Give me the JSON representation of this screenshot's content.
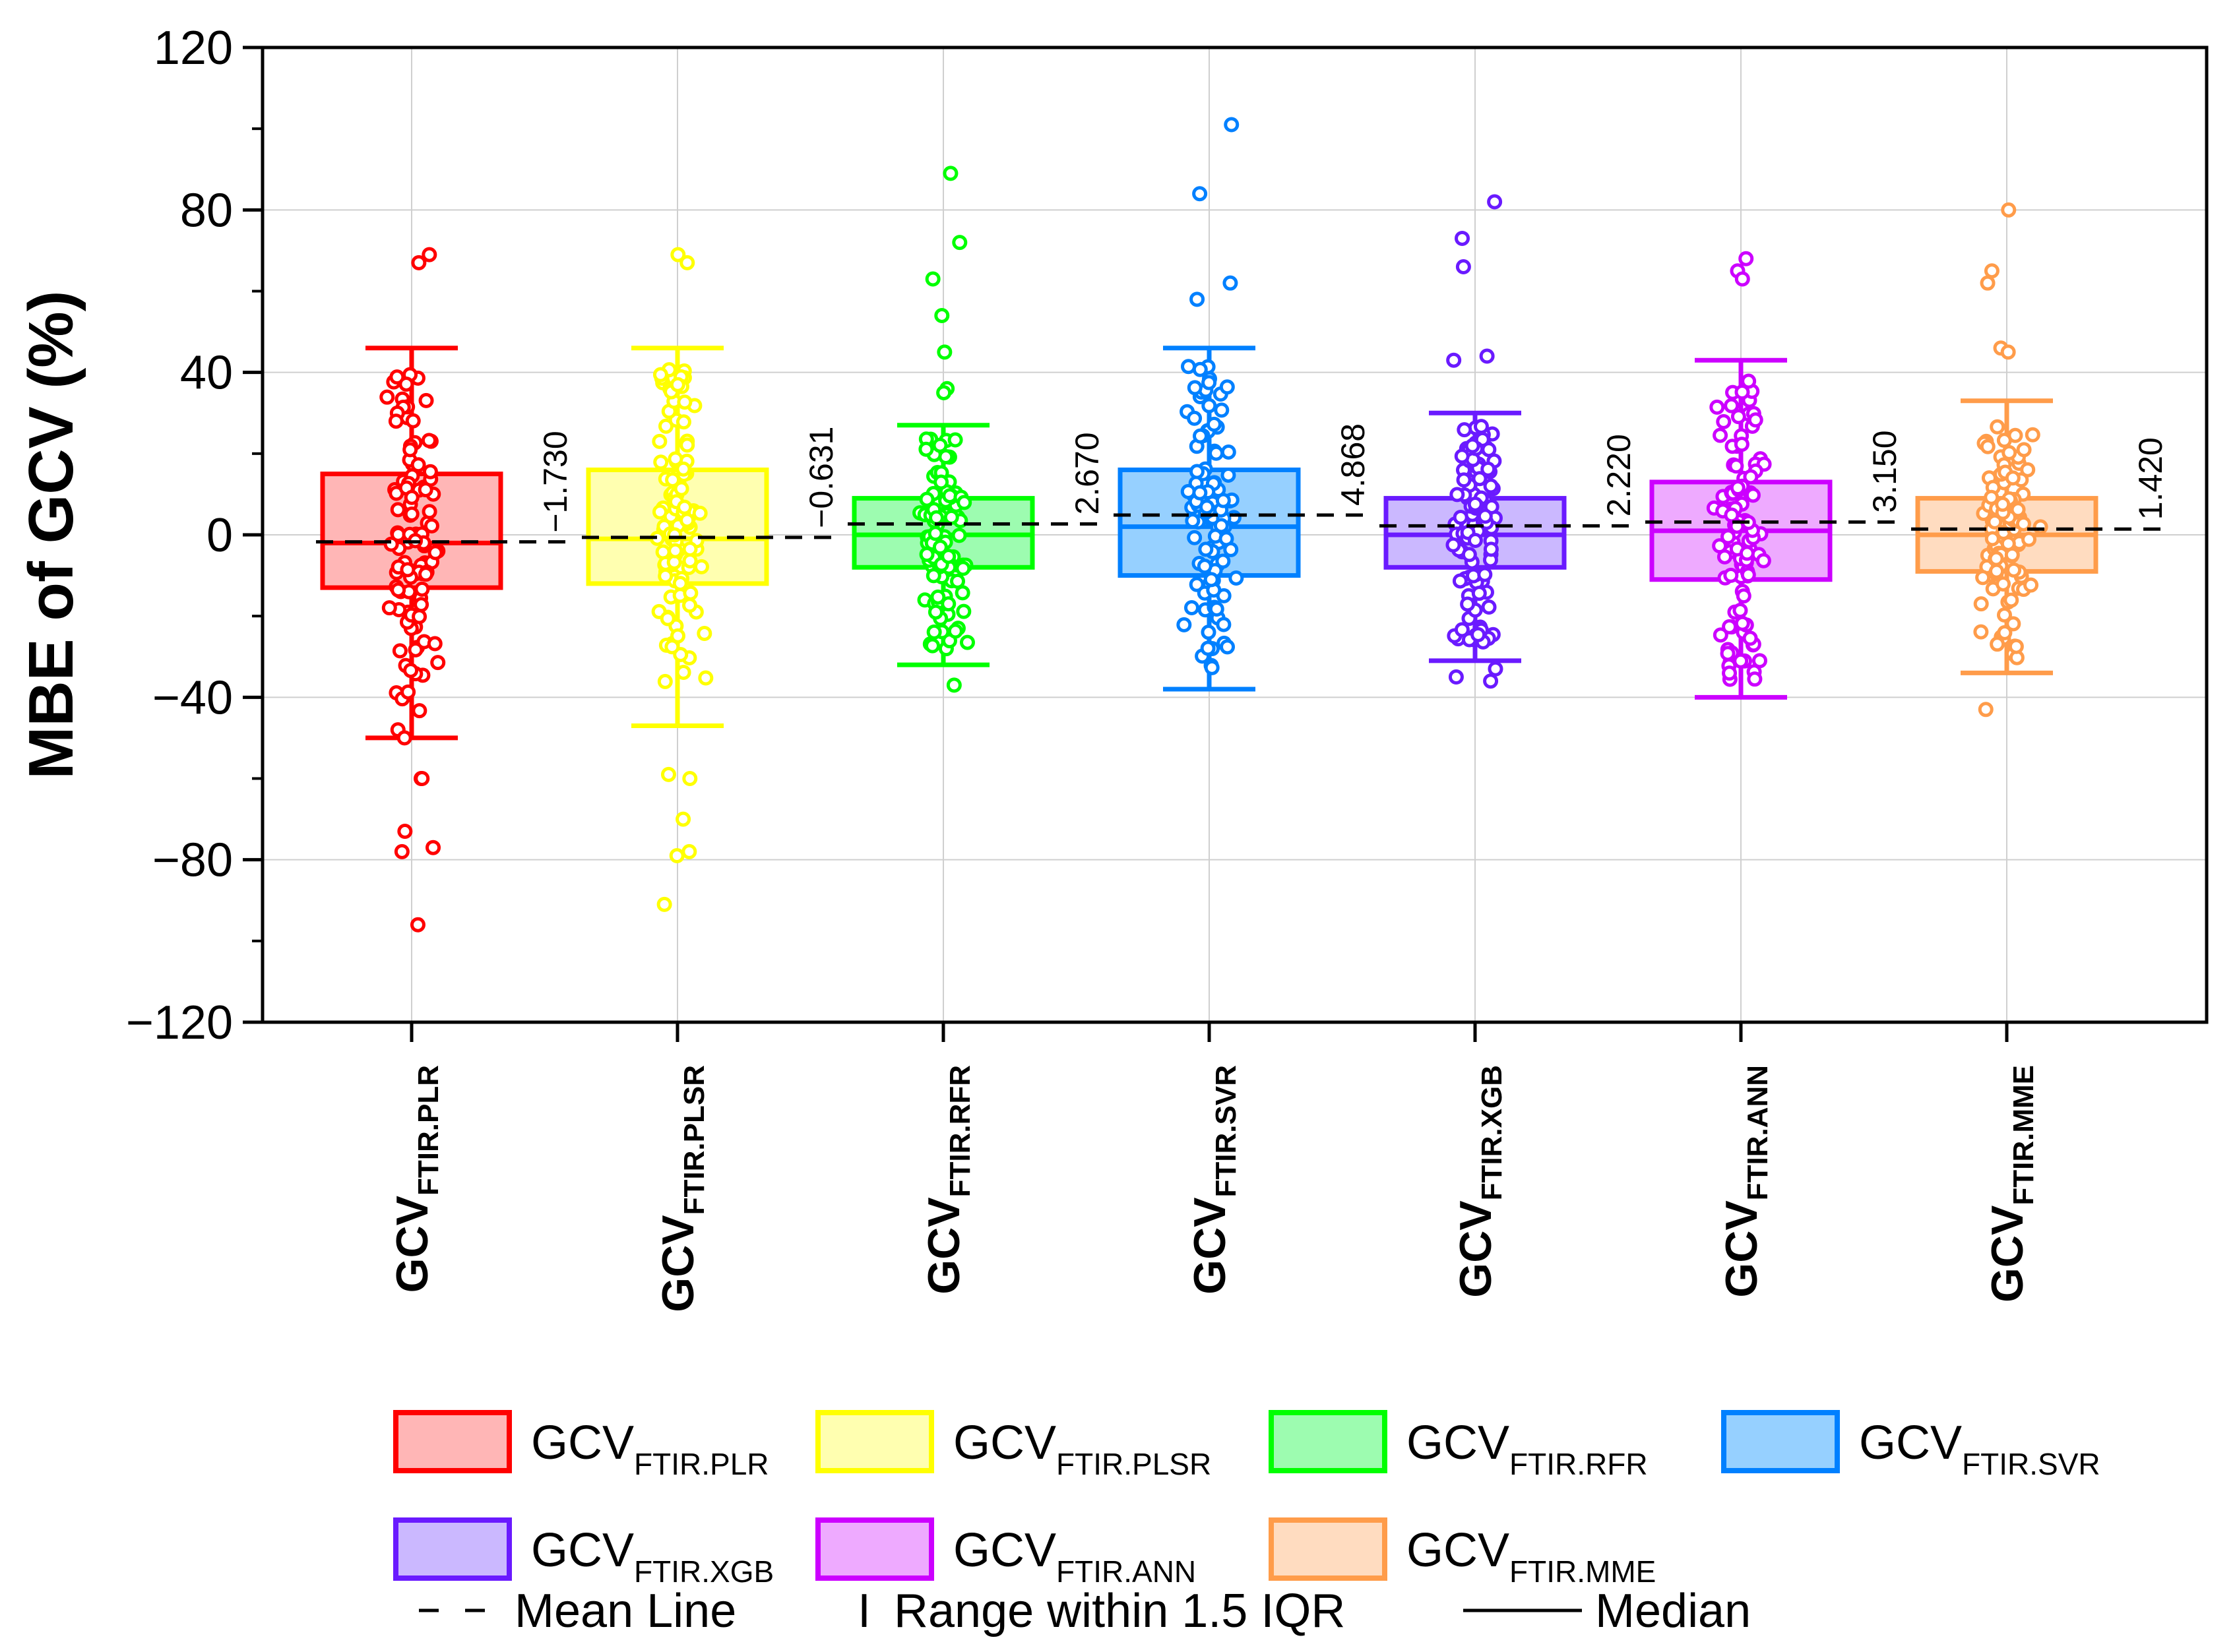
{
  "chart_data": {
    "type": "box",
    "ylabel": "MBE of GCV (%)",
    "ylim": [
      -120,
      120
    ],
    "yticks": [
      -120,
      -80,
      -40,
      0,
      40,
      80,
      120
    ],
    "ytick_labels": [
      "−120",
      "−80",
      "−40",
      "0",
      "40",
      "80",
      "120"
    ],
    "grid": true,
    "legend_position": "bottom",
    "series": [
      {
        "name": "GCV",
        "sub": "FTIR.PLR",
        "color": "#ff0000",
        "fill": "#ffb6b6",
        "q1": -13,
        "median": -2,
        "q3": 15,
        "whisker_low": -50,
        "whisker_high": 46,
        "mean": -1.73,
        "mean_label": "−1.730",
        "outliers": [
          69,
          67,
          -73,
          -78,
          -77,
          -96,
          -60,
          -60,
          -48,
          -50
        ]
      },
      {
        "name": "GCV",
        "sub": "FTIR.PLSR",
        "color": "#ffff00",
        "fill": "#ffffb0",
        "q1": -12,
        "median": -1,
        "q3": 16,
        "whisker_low": -47,
        "whisker_high": 46,
        "mean": -0.631,
        "mean_label": "−0.631",
        "outliers": [
          69,
          67,
          -59,
          -60,
          -70,
          -78,
          -79,
          -91
        ]
      },
      {
        "name": "GCV",
        "sub": "FTIR.RFR",
        "color": "#00ff00",
        "fill": "#9dfcb0",
        "q1": -8,
        "median": 0,
        "q3": 9,
        "whisker_low": -32,
        "whisker_high": 27,
        "mean": 2.67,
        "mean_label": "2.670",
        "outliers": [
          89,
          72,
          63,
          54,
          45,
          36,
          35,
          -37
        ]
      },
      {
        "name": "GCV",
        "sub": "FTIR.SVR",
        "color": "#0080ff",
        "fill": "#96d0ff",
        "q1": -10,
        "median": 2,
        "q3": 16,
        "whisker_low": -38,
        "whisker_high": 46,
        "mean": 4.868,
        "mean_label": "4.868",
        "outliers": [
          101,
          84,
          62,
          58
        ]
      },
      {
        "name": "GCV",
        "sub": "FTIR.XGB",
        "color": "#6a1aff",
        "fill": "#cbb8ff",
        "q1": -8,
        "median": 0,
        "q3": 9,
        "whisker_low": -31,
        "whisker_high": 30,
        "mean": 2.22,
        "mean_label": "2.220",
        "outliers": [
          82,
          73,
          66,
          44,
          43,
          -36,
          -35,
          -33
        ]
      },
      {
        "name": "GCV",
        "sub": "FTIR.ANN",
        "color": "#cc00ff",
        "fill": "#eeaaff",
        "q1": -11,
        "median": 1,
        "q3": 13,
        "whisker_low": -40,
        "whisker_high": 43,
        "mean": 3.15,
        "mean_label": "3.150",
        "outliers": [
          68,
          65,
          63
        ]
      },
      {
        "name": "GCV",
        "sub": "FTIR.MME",
        "color": "#ff9c4a",
        "fill": "#ffdcc0",
        "q1": -9,
        "median": 0,
        "q3": 9,
        "whisker_low": -34,
        "whisker_high": 33,
        "mean": 1.42,
        "mean_label": "1.420",
        "outliers": [
          80,
          65,
          62,
          46,
          45,
          -43
        ]
      }
    ],
    "legend_extra": {
      "mean_line": "Mean Line",
      "range": "Range within 1.5 IQR",
      "range_symbol": "I",
      "median": "Median"
    }
  }
}
